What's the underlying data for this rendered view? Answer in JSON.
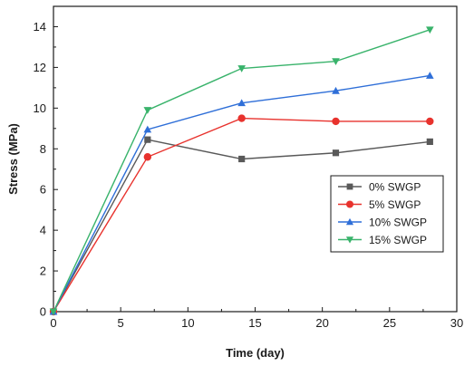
{
  "chart_data": {
    "type": "line",
    "xlabel": "Time (day)",
    "ylabel": "Stress (MPa)",
    "xlim": [
      0,
      30
    ],
    "ylim": [
      0,
      15
    ],
    "xticks": [
      0,
      5,
      10,
      15,
      20,
      25,
      30
    ],
    "yticks": [
      0,
      2,
      4,
      6,
      8,
      10,
      12,
      14
    ],
    "grid": false,
    "legend_position": "right",
    "x": [
      0,
      7,
      14,
      21,
      28
    ],
    "series": [
      {
        "name": "0% SWGP",
        "values": [
          0,
          8.45,
          7.5,
          7.8,
          8.35
        ],
        "color": "#595959",
        "marker": "square"
      },
      {
        "name": "5% SWGP",
        "values": [
          0,
          7.6,
          9.5,
          9.35,
          9.35
        ],
        "color": "#e8322d",
        "marker": "circle"
      },
      {
        "name": "10% SWGP",
        "values": [
          0,
          8.95,
          10.25,
          10.85,
          11.6
        ],
        "color": "#2f6fd8",
        "marker": "triangle-up"
      },
      {
        "name": "15% SWGP",
        "values": [
          0,
          9.9,
          11.95,
          12.3,
          13.85
        ],
        "color": "#39b36b",
        "marker": "triangle-down"
      }
    ]
  }
}
